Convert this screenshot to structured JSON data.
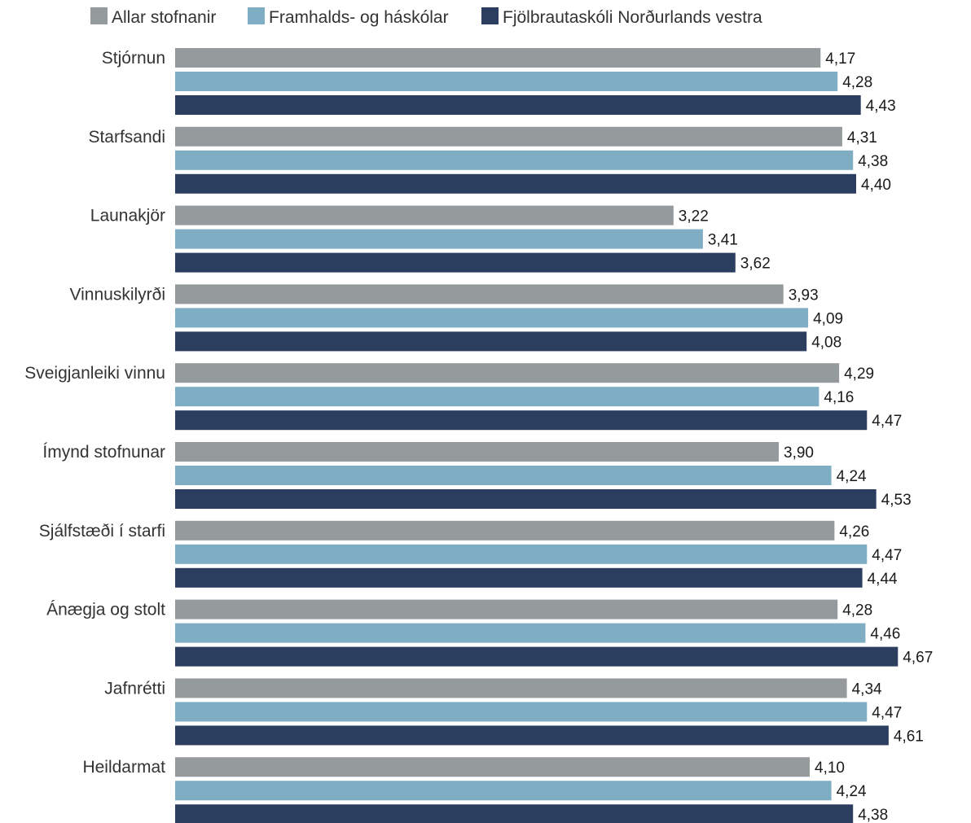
{
  "chart_data": {
    "type": "bar",
    "orientation": "horizontal",
    "title": "",
    "xlabel": "",
    "ylabel": "",
    "xlim": [
      0,
      5
    ],
    "grid": false,
    "legend_position": "top",
    "decimal_separator": ",",
    "categories": [
      "Stjórnun",
      "Starfsandi",
      "Launakjör",
      "Vinnuskilyrði",
      "Sveigjanleiki vinnu",
      "Ímynd stofnunar",
      "Sjálfstæði í starfi",
      "Ánægja og stolt",
      "Jafnrétti",
      "Heildarmat"
    ],
    "series": [
      {
        "name": "Allar stofnanir",
        "color": "#959a9c",
        "values": [
          4.17,
          4.31,
          3.22,
          3.93,
          4.29,
          3.9,
          4.26,
          4.28,
          4.34,
          4.1
        ]
      },
      {
        "name": "Framhalds- og háskólar",
        "color": "#7eadc4",
        "values": [
          4.28,
          4.38,
          3.41,
          4.09,
          4.16,
          4.24,
          4.47,
          4.46,
          4.47,
          4.24
        ]
      },
      {
        "name": "Fjölbrautaskóli Norðurlands vestra",
        "color": "#2c3e60",
        "values": [
          4.43,
          4.4,
          3.62,
          4.08,
          4.47,
          4.53,
          4.44,
          4.67,
          4.61,
          4.38
        ]
      }
    ]
  }
}
